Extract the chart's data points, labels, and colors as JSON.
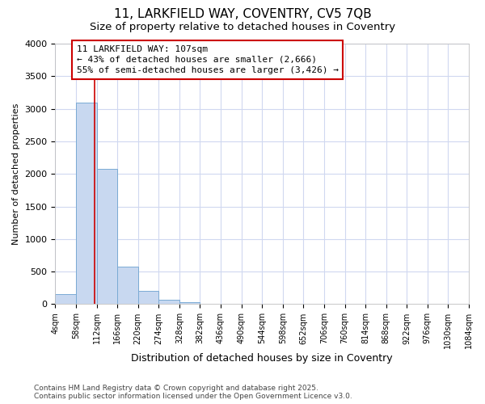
{
  "title1": "11, LARKFIELD WAY, COVENTRY, CV5 7QB",
  "title2": "Size of property relative to detached houses in Coventry",
  "xlabel": "Distribution of detached houses by size in Coventry",
  "ylabel": "Number of detached properties",
  "bins": [
    "4sqm",
    "58sqm",
    "112sqm",
    "166sqm",
    "220sqm",
    "274sqm",
    "328sqm",
    "382sqm",
    "436sqm",
    "490sqm",
    "544sqm",
    "598sqm",
    "652sqm",
    "706sqm",
    "760sqm",
    "814sqm",
    "868sqm",
    "922sqm",
    "976sqm",
    "1030sqm",
    "1084sqm"
  ],
  "bin_edges": [
    4,
    58,
    112,
    166,
    220,
    274,
    328,
    382,
    436,
    490,
    544,
    598,
    652,
    706,
    760,
    814,
    868,
    922,
    976,
    1030,
    1084
  ],
  "bar_heights": [
    150,
    3100,
    2080,
    580,
    210,
    65,
    35,
    0,
    0,
    0,
    0,
    0,
    0,
    0,
    0,
    0,
    0,
    0,
    0,
    0
  ],
  "bar_color": "#c8d8f0",
  "bar_edge_color": "#7aaad4",
  "property_size": 107,
  "property_line_color": "#cc0000",
  "annotation_text": "11 LARKFIELD WAY: 107sqm\n← 43% of detached houses are smaller (2,666)\n55% of semi-detached houses are larger (3,426) →",
  "annotation_box_color": "#cc0000",
  "ylim": [
    0,
    4000
  ],
  "yticks": [
    0,
    500,
    1000,
    1500,
    2000,
    2500,
    3000,
    3500,
    4000
  ],
  "footer1": "Contains HM Land Registry data © Crown copyright and database right 2025.",
  "footer2": "Contains public sector information licensed under the Open Government Licence v3.0.",
  "bg_color": "#ffffff",
  "plot_bg_color": "#ffffff",
  "grid_color": "#d0d8f0",
  "title1_fontsize": 11,
  "title2_fontsize": 9.5
}
